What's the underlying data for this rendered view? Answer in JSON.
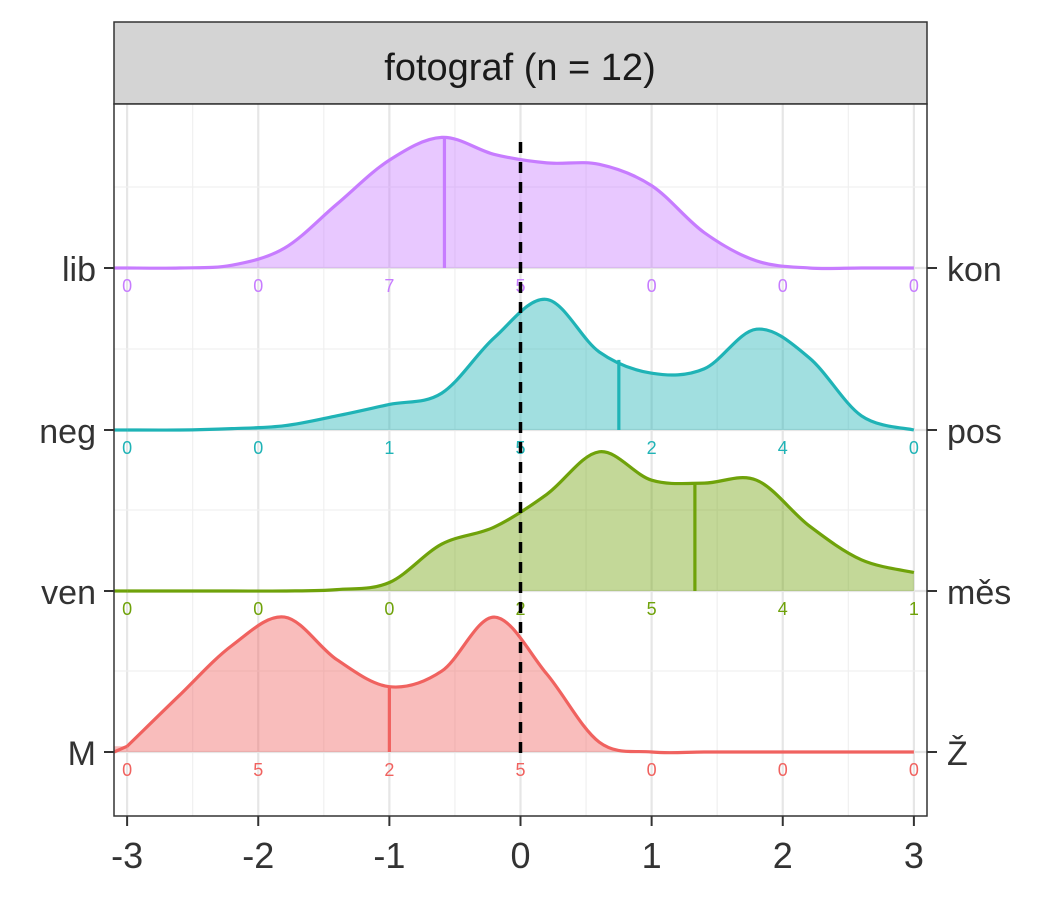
{
  "chart_data": {
    "type": "ridgeline-density",
    "panel_title": "fotograf (n = 12)",
    "xlim": [
      -3.1,
      3.1
    ],
    "x_ticks": [
      -3,
      -2,
      -1,
      0,
      1,
      2,
      3
    ],
    "x_tick_labels": [
      "-3",
      "-2",
      "-1",
      "0",
      "1",
      "2",
      "3"
    ],
    "reference_line_x": 0,
    "grid": true,
    "count_positions": [
      -3,
      -2,
      -1,
      0,
      1,
      2,
      3
    ],
    "series": [
      {
        "left_label": "lib",
        "right_label": "kon",
        "color": "#C77CFF",
        "counts": [
          0,
          0,
          7,
          5,
          0,
          0,
          0
        ],
        "mean": -0.58,
        "density_y": [
          0,
          0,
          0.02,
          0.14,
          0.45,
          0.76,
          0.92,
          0.8,
          0.74,
          0.73,
          0.58,
          0.25,
          0.05,
          0,
          0,
          0
        ]
      },
      {
        "left_label": "neg",
        "right_label": "pos",
        "color": "#1FB3B6",
        "counts": [
          0,
          0,
          1,
          5,
          2,
          4,
          0
        ],
        "mean": 0.75,
        "density_y": [
          0,
          0,
          0.01,
          0.03,
          0.1,
          0.18,
          0.26,
          0.65,
          0.92,
          0.55,
          0.4,
          0.43,
          0.71,
          0.51,
          0.1,
          0
        ]
      },
      {
        "left_label": "ven",
        "right_label": "měs",
        "color": "#6FA20A",
        "counts": [
          0,
          0,
          0,
          2,
          5,
          4,
          1
        ],
        "mean": 1.33,
        "density_y": [
          0,
          0,
          0,
          0,
          0.01,
          0.06,
          0.33,
          0.45,
          0.68,
          0.98,
          0.78,
          0.76,
          0.78,
          0.46,
          0.22,
          0.13
        ]
      },
      {
        "left_label": "M",
        "right_label": "Ž",
        "color": "#F0625F",
        "counts": [
          0,
          5,
          2,
          5,
          0,
          0,
          0
        ],
        "mean": -1.0,
        "density_y": [
          0.04,
          0.4,
          0.75,
          0.95,
          0.65,
          0.46,
          0.57,
          0.95,
          0.55,
          0.07,
          0,
          0,
          0,
          0,
          0,
          0
        ]
      }
    ]
  }
}
